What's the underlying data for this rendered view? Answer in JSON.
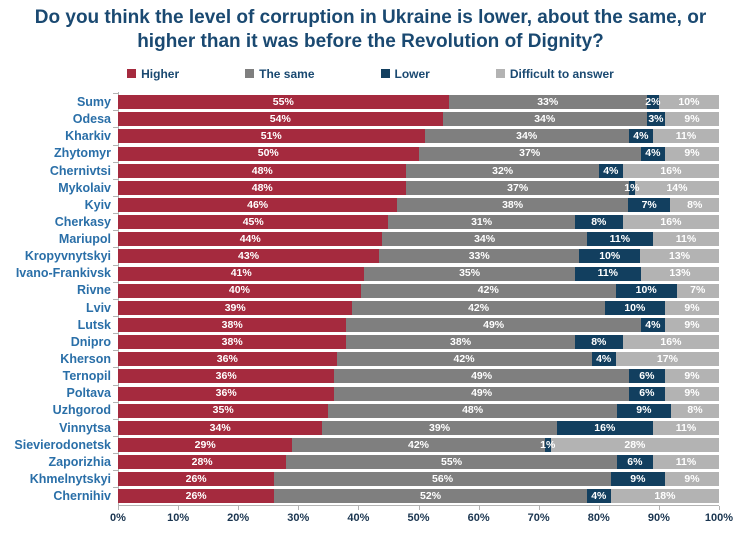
{
  "title": "Do you think the level of corruption in Ukraine is lower, about the same, or higher than it was before the Revolution of Dignity?",
  "colors": {
    "title_text": "#1A4971",
    "category_text": "#2A6FA8",
    "axis_text": "#1A3550",
    "axis_line": "#B3B3B3",
    "higher": "#A52A3E",
    "the_same": "#7F7F7F",
    "lower": "#123F5F",
    "difficult": "#B3B3B3"
  },
  "legend": [
    {
      "label": "Higher",
      "color": "#A52A3E"
    },
    {
      "label": "The same",
      "color": "#7F7F7F"
    },
    {
      "label": "Lower",
      "color": "#123F5F"
    },
    {
      "label": "Difficult to answer",
      "color": "#B3B3B3"
    }
  ],
  "chart_data": {
    "type": "bar",
    "stacked": true,
    "orientation": "horizontal",
    "title": "Do you think the level of corruption in Ukraine is lower, about the same, or higher than it was before the Revolution of Dignity?",
    "legend_position": "top",
    "value_suffix": "%",
    "xlim": [
      0,
      100
    ],
    "x_ticks": [
      "0%",
      "10%",
      "20%",
      "30%",
      "40%",
      "50%",
      "60%",
      "70%",
      "80%",
      "90%",
      "100%"
    ],
    "categories": [
      "Sumy",
      "Odesa",
      "Kharkiv",
      "Zhytomyr",
      "Chernivtsi",
      "Mykolaiv",
      "Kyiv",
      "Cherkasy",
      "Mariupol",
      "Kropyvnytskyi",
      "Ivano-Frankivsk",
      "Rivne",
      "Lviv",
      "Lutsk",
      "Dnipro",
      "Kherson",
      "Ternopil",
      "Poltava",
      "Uzhgorod",
      "Vinnytsa",
      "Sievierodonetsk",
      "Zaporizhia",
      "Khmelnytskyi",
      "Chernihiv"
    ],
    "series": [
      {
        "name": "Higher",
        "color": "#A52A3E",
        "values": [
          55,
          54,
          51,
          50,
          48,
          48,
          46,
          45,
          44,
          43,
          41,
          40,
          39,
          38,
          38,
          36,
          36,
          36,
          35,
          34,
          29,
          28,
          26,
          26
        ]
      },
      {
        "name": "The same",
        "color": "#7F7F7F",
        "values": [
          33,
          34,
          34,
          37,
          32,
          37,
          38,
          31,
          34,
          33,
          35,
          42,
          42,
          49,
          38,
          42,
          49,
          49,
          48,
          39,
          42,
          55,
          56,
          52
        ]
      },
      {
        "name": "Lower",
        "color": "#123F5F",
        "values": [
          2,
          3,
          4,
          4,
          4,
          1,
          7,
          8,
          11,
          10,
          11,
          10,
          10,
          4,
          8,
          4,
          6,
          6,
          9,
          16,
          1,
          6,
          9,
          4
        ]
      },
      {
        "name": "Difficult to answer",
        "color": "#B3B3B3",
        "values": [
          10,
          9,
          11,
          9,
          16,
          14,
          8,
          16,
          11,
          13,
          13,
          7,
          9,
          9,
          16,
          17,
          9,
          9,
          8,
          11,
          28,
          11,
          9,
          18
        ]
      }
    ]
  }
}
